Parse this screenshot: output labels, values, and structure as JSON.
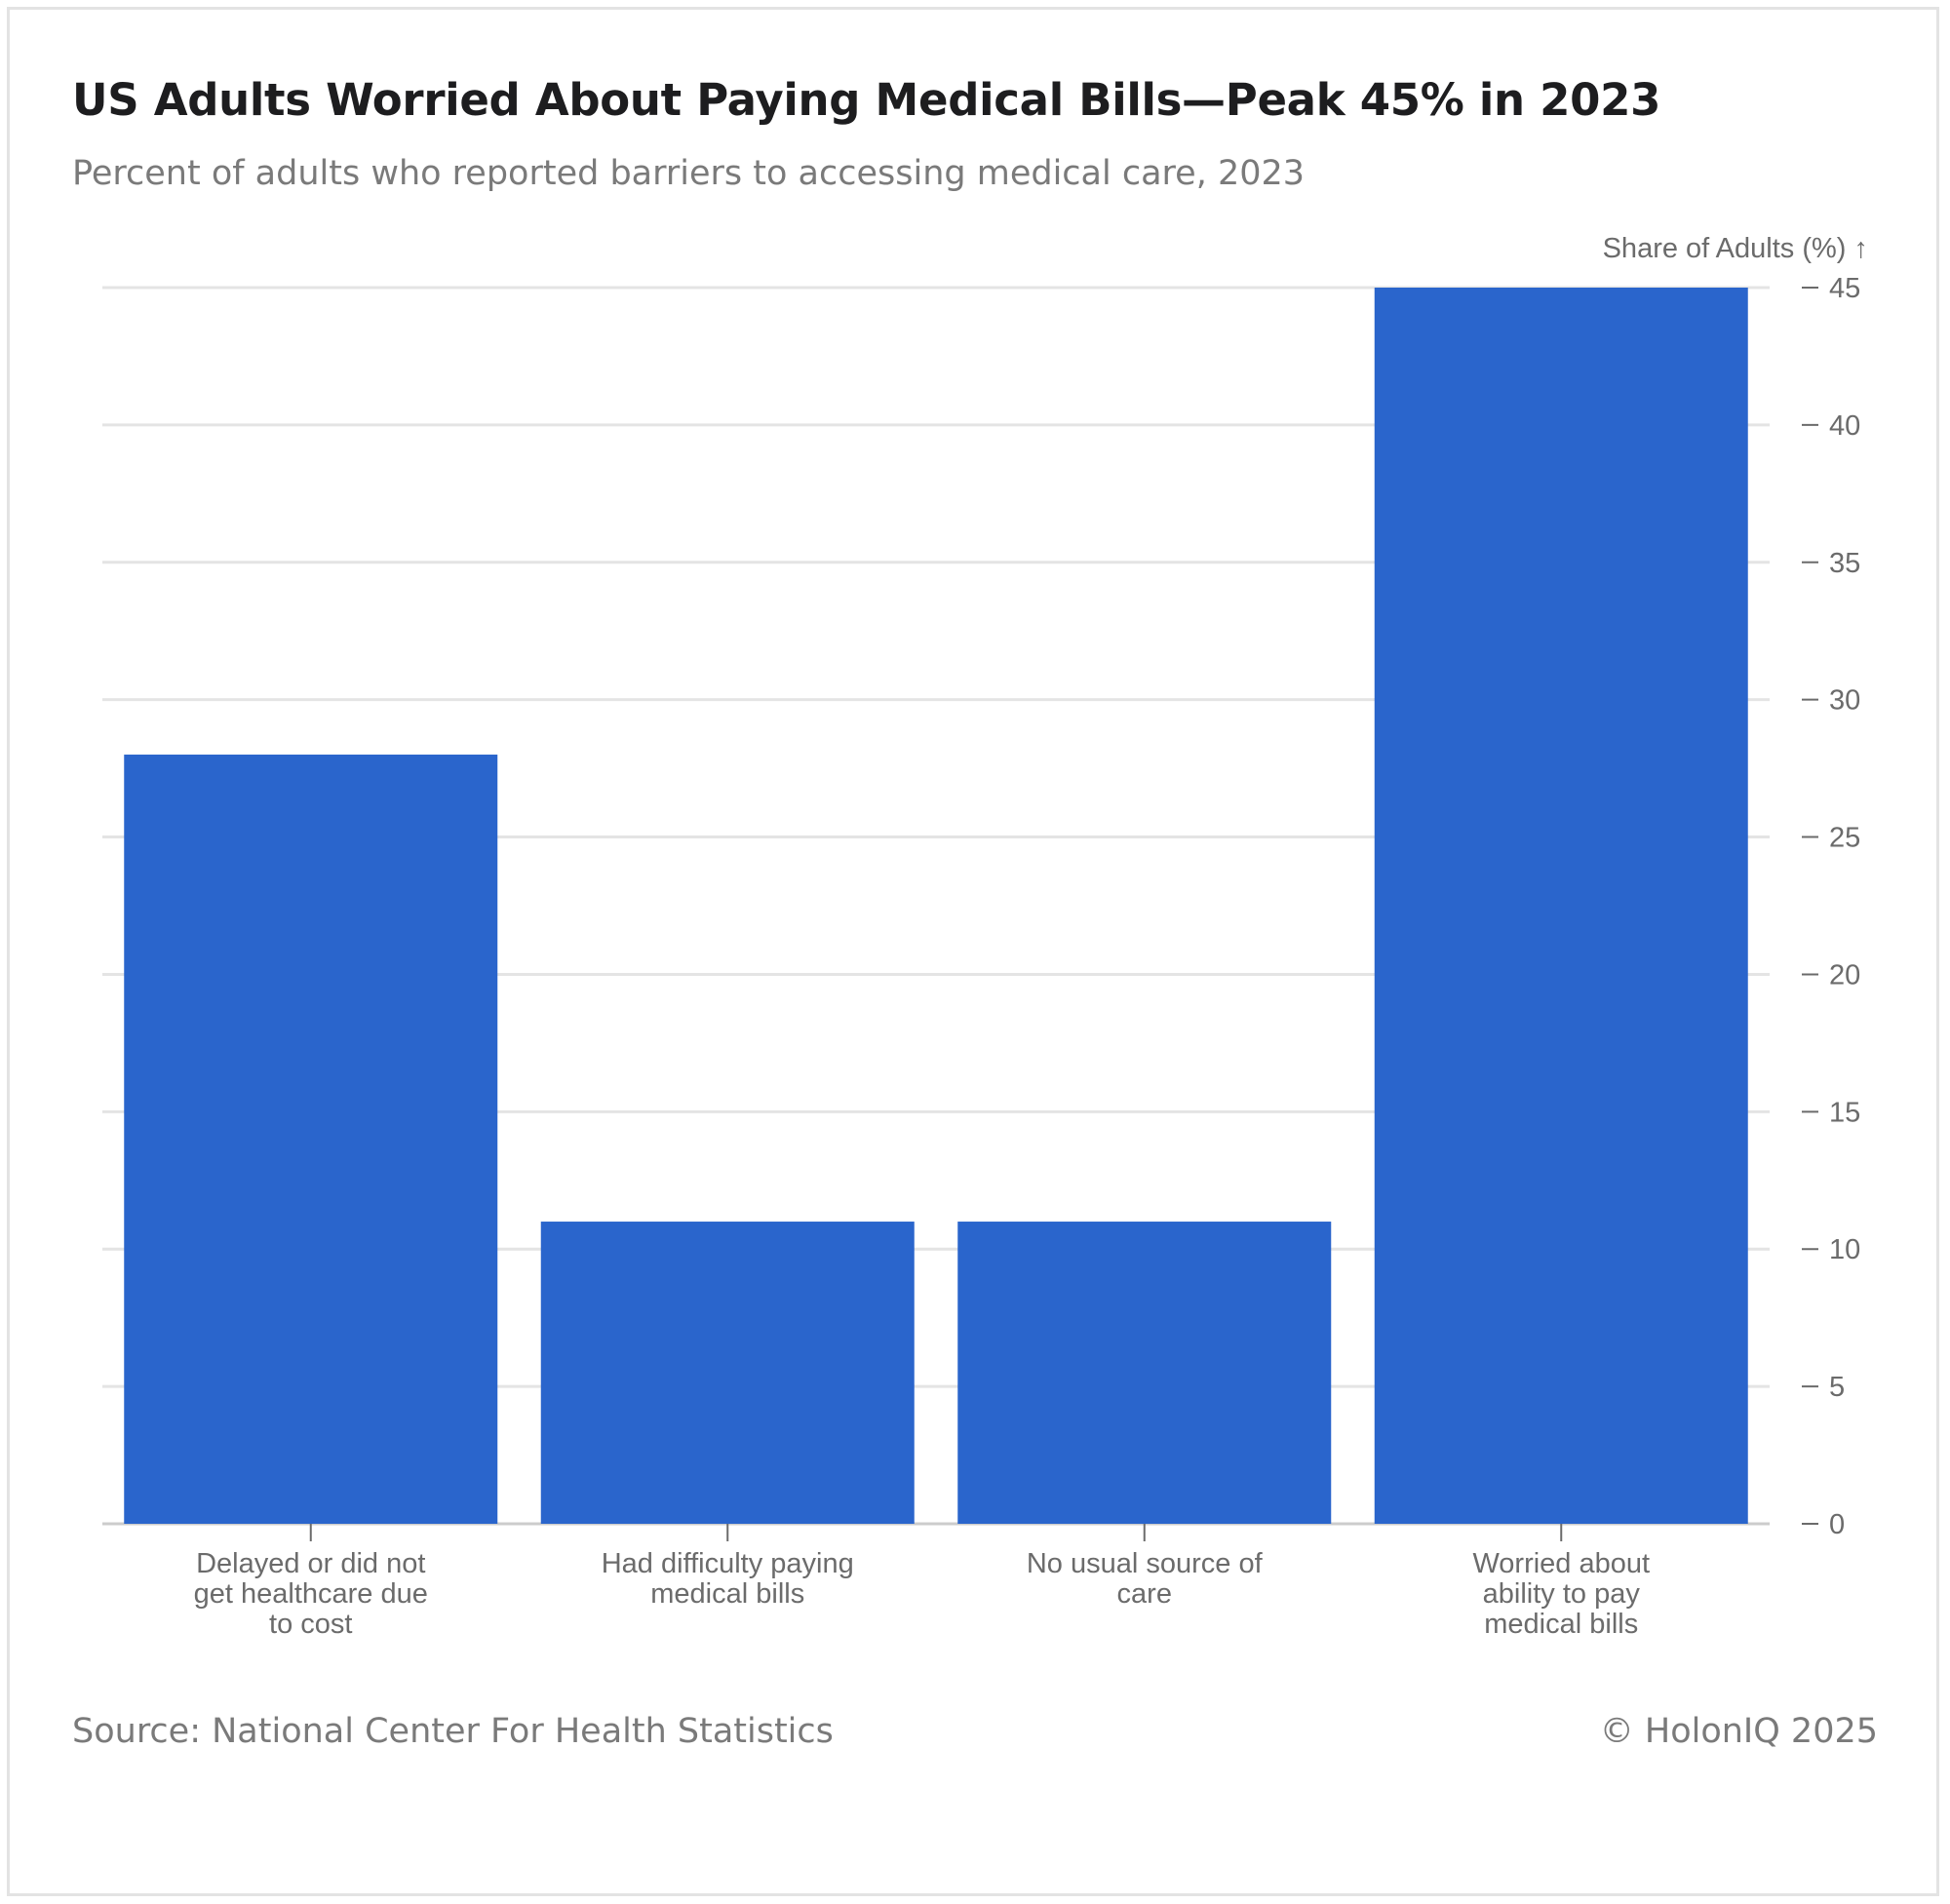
{
  "chart_data": {
    "type": "bar",
    "title": "US Adults Worried About Paying Medical Bills—Peak 45% in 2023",
    "subtitle": "Percent of adults who reported barriers to accessing medical care, 2023",
    "ylabel": "Share of Adults (%) ↑",
    "xlabel": "",
    "categories": [
      [
        "Delayed or did not",
        "get healthcare due",
        "to cost"
      ],
      [
        "Had difficulty paying",
        "medical bills"
      ],
      [
        "No usual source of",
        "care"
      ],
      [
        "Worried about",
        "ability to pay",
        "medical bills"
      ]
    ],
    "values": [
      28,
      11,
      11,
      45
    ],
    "ylim": [
      0,
      45
    ],
    "yticks": [
      0,
      5,
      10,
      15,
      20,
      25,
      30,
      35,
      40,
      45
    ],
    "y_axis_position": "right",
    "grid": true,
    "bar_color": "#2a65cc",
    "source": "Source: National Center For Health Statistics",
    "credit": "© HolonIQ 2025"
  }
}
